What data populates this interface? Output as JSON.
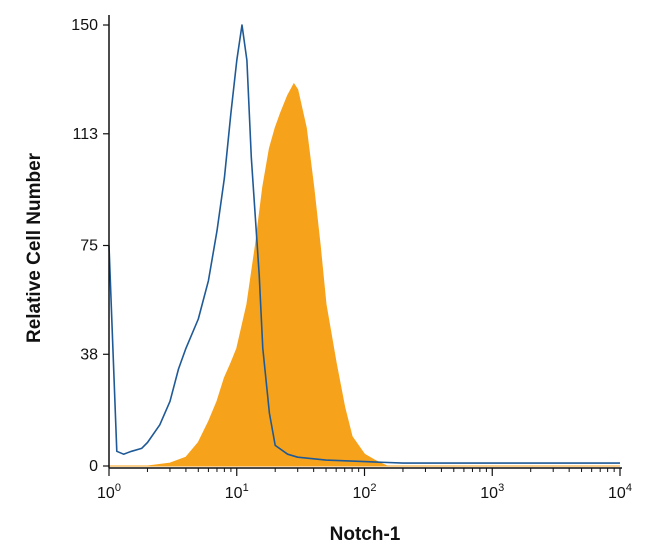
{
  "chart_data": {
    "type": "area",
    "title": "",
    "xlabel": "Notch-1",
    "ylabel": "Relative Cell Number",
    "x_scale": "log",
    "xlim": [
      1,
      10000
    ],
    "ylim": [
      0,
      150
    ],
    "x_ticks": [
      {
        "value": 1,
        "base": "10",
        "exp": "0"
      },
      {
        "value": 10,
        "base": "10",
        "exp": "1"
      },
      {
        "value": 100,
        "base": "10",
        "exp": "2"
      },
      {
        "value": 1000,
        "base": "10",
        "exp": "3"
      },
      {
        "value": 10000,
        "base": "10",
        "exp": "4"
      }
    ],
    "y_ticks": [
      0,
      38,
      75,
      113,
      150
    ],
    "grid": false,
    "legend": "none",
    "colors": {
      "isotype": "#1f5a96",
      "notch": "#f7a21b",
      "axis": "#111111"
    },
    "series": [
      {
        "style": "line",
        "x": [
          1,
          1.15,
          1.3,
          1.5,
          1.8,
          2.0,
          2.5,
          3.0,
          3.5,
          4.0,
          5.0,
          6.0,
          7.0,
          8.0,
          9.0,
          10,
          11,
          12,
          13,
          15,
          16,
          18,
          20,
          25,
          30,
          50,
          100,
          200,
          500,
          1000,
          2000,
          5000,
          10000
        ],
        "y": [
          75,
          5,
          4,
          5,
          6,
          8,
          14,
          22,
          33,
          40,
          50,
          63,
          80,
          98,
          120,
          138,
          150,
          138,
          105,
          65,
          40,
          18,
          7,
          4,
          3,
          2,
          1.5,
          1,
          1,
          1,
          1,
          1,
          1
        ]
      },
      {
        "style": "filled",
        "x": [
          1,
          2,
          3,
          4,
          5,
          6,
          7,
          8,
          9,
          10,
          12,
          14,
          16,
          18,
          20,
          22,
          25,
          28,
          30,
          35,
          40,
          45,
          50,
          60,
          70,
          80,
          100,
          120,
          150,
          10000
        ],
        "y": [
          0,
          0,
          1,
          3,
          8,
          15,
          22,
          30,
          35,
          40,
          55,
          75,
          95,
          108,
          115,
          120,
          126,
          130,
          128,
          115,
          95,
          75,
          55,
          35,
          20,
          10,
          4,
          2,
          0,
          0
        ]
      }
    ]
  }
}
